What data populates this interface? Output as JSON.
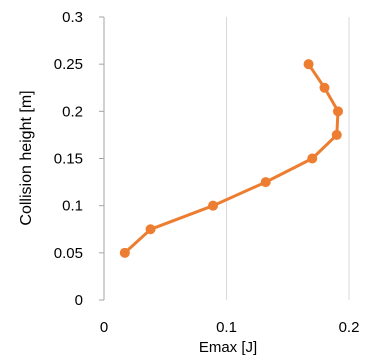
{
  "chart_data": {
    "type": "scatter",
    "mode": "lines+markers",
    "title": "",
    "xlabel": "Emax [J]",
    "ylabel": "Collision height [m]",
    "xlim": [
      0,
      0.2
    ],
    "ylim": [
      0,
      0.3
    ],
    "xticks": [
      "0",
      "0.1",
      "0.2"
    ],
    "yticks": [
      "0",
      "0.05",
      "0.1",
      "0.15",
      "0.2",
      "0.25",
      "0.3"
    ],
    "grid": "vertical",
    "legend": "none",
    "series_color": "#ED7D31",
    "gridline_color": "#D9D9D9",
    "series": [
      {
        "x": [
          0.017,
          0.038,
          0.089,
          0.132,
          0.17,
          0.19,
          0.191,
          0.18,
          0.167
        ],
        "y": [
          0.05,
          0.075,
          0.1,
          0.125,
          0.15,
          0.175,
          0.2,
          0.225,
          0.25
        ]
      }
    ]
  }
}
